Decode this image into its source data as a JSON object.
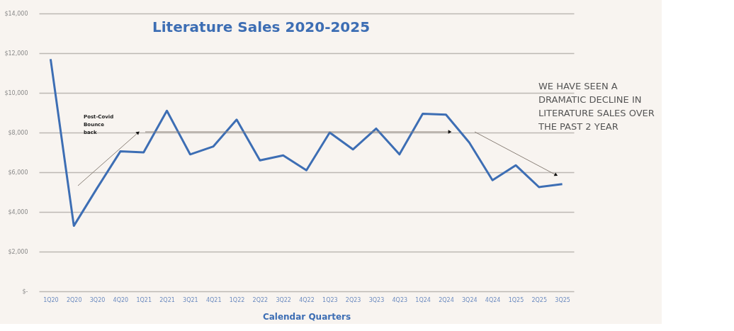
{
  "chart_data": {
    "type": "line",
    "title": "Literature Sales 2020-2025",
    "xlabel": "Calendar Quarters",
    "categories": [
      "1Q20",
      "2Q20",
      "3Q20",
      "4Q20",
      "1Q21",
      "2Q21",
      "3Q21",
      "4Q21",
      "1Q22",
      "2Q22",
      "3Q22",
      "4Q22",
      "1Q23",
      "2Q23",
      "3Q23",
      "4Q23",
      "1Q24",
      "2Q24",
      "3Q24",
      "4Q24",
      "1Q25",
      "2Q25",
      "3Q25"
    ],
    "series": [
      {
        "color": "#3d6eb4",
        "values": [
          11700,
          3300,
          5200,
          7050,
          7000,
          9100,
          6900,
          7300,
          8650,
          6600,
          6850,
          6100,
          8000,
          7150,
          8200,
          6900,
          8950,
          8900,
          7500,
          5600,
          6350,
          5250,
          5400
        ]
      }
    ],
    "ylim": [
      0,
      14000
    ],
    "yticks": [
      {
        "value": 0,
        "label": "$-"
      },
      {
        "value": 2000,
        "label": "$2,000"
      },
      {
        "value": 4000,
        "label": "$4,000"
      },
      {
        "value": 6000,
        "label": "$6,000"
      },
      {
        "value": 8000,
        "label": "$8,000"
      },
      {
        "value": 10000,
        "label": "$10,000"
      },
      {
        "value": 12000,
        "label": "$12,000"
      },
      {
        "value": 14000,
        "label": "$14,000"
      }
    ],
    "grid": "y",
    "line_style": "solid",
    "marker": "none",
    "annotations": [
      "Post-Covid Bounce back",
      "WE HAVE SEEN A DRAMATIC DECLINE IN LITERATURE SALES OVER THE PAST 2 YEAR"
    ]
  }
}
